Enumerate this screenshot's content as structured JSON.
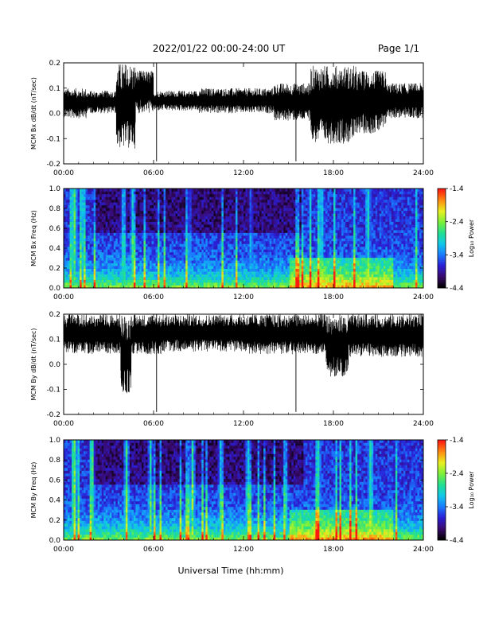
{
  "header": {
    "date_range": "2022/01/22  00:00-24:00 UT",
    "page": "Page 1/1"
  },
  "footer": {
    "xlabel": "Universal Time (hh:mm)"
  },
  "colorbar": {
    "label": "Log₁₀ Power",
    "ticks": [
      "-1.4",
      "-2.4",
      "-3.4",
      "-4.4"
    ],
    "range": [
      -4.4,
      -1.4
    ],
    "colormap": [
      "#000000",
      "#3a0a6e",
      "#2a1fd6",
      "#1a7cff",
      "#10c8e8",
      "#22e090",
      "#7cf03a",
      "#e8f020",
      "#ff8c10",
      "#ff1a10"
    ]
  },
  "chart_data": [
    {
      "type": "line",
      "ylabel": "MCM Bx dB/dt (nT/sec)",
      "xlim": [
        0,
        24
      ],
      "ylim": [
        -0.2,
        0.2
      ],
      "x_ticks": [
        "00:00",
        "06:00",
        "12:00",
        "18:00",
        "24:00"
      ],
      "y_ticks": [
        "0.2",
        "0.1",
        "0.0",
        "-0.1",
        "-0.2"
      ],
      "series_color": "#000000",
      "envelope_segments": [
        {
          "t_start": 0.0,
          "t_end": 1.5,
          "min": -0.02,
          "max": 0.1
        },
        {
          "t_start": 1.5,
          "t_end": 3.5,
          "min": 0.0,
          "max": 0.09
        },
        {
          "t_start": 3.5,
          "t_end": 4.8,
          "min": -0.14,
          "max": 0.2
        },
        {
          "t_start": 4.8,
          "t_end": 6.0,
          "min": 0.0,
          "max": 0.17
        },
        {
          "t_start": 6.0,
          "t_end": 9.0,
          "min": 0.01,
          "max": 0.09
        },
        {
          "t_start": 9.0,
          "t_end": 14.0,
          "min": 0.0,
          "max": 0.1
        },
        {
          "t_start": 14.0,
          "t_end": 16.5,
          "min": -0.03,
          "max": 0.12
        },
        {
          "t_start": 16.5,
          "t_end": 19.5,
          "min": -0.12,
          "max": 0.19
        },
        {
          "t_start": 19.5,
          "t_end": 21.5,
          "min": -0.08,
          "max": 0.17
        },
        {
          "t_start": 21.5,
          "t_end": 24.0,
          "min": -0.02,
          "max": 0.12
        }
      ],
      "spikes": [
        {
          "t": 6.2,
          "min": -0.19,
          "max": 0.2
        },
        {
          "t": 15.5,
          "min": -0.19,
          "max": 0.2
        }
      ]
    },
    {
      "type": "heatmap",
      "ylabel": "MCM Bx Freq (Hz)",
      "xlim": [
        0,
        24
      ],
      "ylim": [
        0.0,
        1.0
      ],
      "x_ticks": [
        "00:00",
        "06:00",
        "12:00",
        "18:00",
        "24:00"
      ],
      "y_ticks": [
        "1.0",
        "0.8",
        "0.6",
        "0.4",
        "0.2",
        "0.0"
      ],
      "colorbar_label": "Log₁₀ Power",
      "colorbar_ticks": [
        "-1.4",
        "-2.4",
        "-3.4",
        "-4.4"
      ],
      "zlim": [
        -4.4,
        -1.4
      ],
      "hot_bands": [
        {
          "t": 0.7,
          "level": 0.75
        },
        {
          "t": 1.2,
          "level": 0.6
        },
        {
          "t": 4.0,
          "level": 0.7
        },
        {
          "t": 4.6,
          "level": 0.65
        },
        {
          "t": 8.4,
          "level": 0.5
        },
        {
          "t": 12.5,
          "level": 0.5
        },
        {
          "t": 17.2,
          "level": 0.6
        },
        {
          "t": 20.3,
          "level": 0.6
        }
      ]
    },
    {
      "type": "line",
      "ylabel": "MCM By dB/dt (nT/sec)",
      "xlim": [
        0,
        24
      ],
      "ylim": [
        -0.2,
        0.2
      ],
      "x_ticks": [
        "00:00",
        "06:00",
        "12:00",
        "18:00",
        "24:00"
      ],
      "y_ticks": [
        "0.2",
        "0.1",
        "0.0",
        "-0.1",
        "-0.2"
      ],
      "series_color": "#000000",
      "envelope_segments": [
        {
          "t_start": 0.0,
          "t_end": 3.8,
          "min": 0.04,
          "max": 0.2
        },
        {
          "t_start": 3.8,
          "t_end": 4.5,
          "min": -0.12,
          "max": 0.2
        },
        {
          "t_start": 4.5,
          "t_end": 6.5,
          "min": 0.04,
          "max": 0.2
        },
        {
          "t_start": 6.5,
          "t_end": 12.0,
          "min": 0.05,
          "max": 0.2
        },
        {
          "t_start": 12.0,
          "t_end": 17.5,
          "min": 0.04,
          "max": 0.2
        },
        {
          "t_start": 17.5,
          "t_end": 19.0,
          "min": -0.05,
          "max": 0.2
        },
        {
          "t_start": 19.0,
          "t_end": 24.0,
          "min": 0.03,
          "max": 0.2
        }
      ],
      "spikes": [
        {
          "t": 6.2,
          "min": -0.19,
          "max": 0.2
        },
        {
          "t": 15.5,
          "min": -0.19,
          "max": 0.2
        }
      ]
    },
    {
      "type": "heatmap",
      "ylabel": "MCM By Freq (Hz)",
      "xlim": [
        0,
        24
      ],
      "ylim": [
        0.0,
        1.0
      ],
      "x_ticks": [
        "00:00",
        "06:00",
        "12:00",
        "18:00",
        "24:00"
      ],
      "y_ticks": [
        "1.0",
        "0.8",
        "0.6",
        "0.4",
        "0.2",
        "0.0"
      ],
      "colorbar_label": "Log₁₀ Power",
      "colorbar_ticks": [
        "-1.4",
        "-2.4",
        "-3.4",
        "-4.4"
      ],
      "zlim": [
        -4.4,
        -1.4
      ],
      "hot_bands": [
        {
          "t": 0.7,
          "level": 0.8
        },
        {
          "t": 1.9,
          "level": 0.7
        },
        {
          "t": 4.2,
          "level": 0.75
        },
        {
          "t": 5.8,
          "level": 0.7
        },
        {
          "t": 8.6,
          "level": 0.75
        },
        {
          "t": 10.5,
          "level": 0.7
        },
        {
          "t": 12.3,
          "level": 0.7
        },
        {
          "t": 14.8,
          "level": 0.65
        },
        {
          "t": 17.0,
          "level": 0.6
        },
        {
          "t": 20.5,
          "level": 0.65
        }
      ]
    }
  ]
}
